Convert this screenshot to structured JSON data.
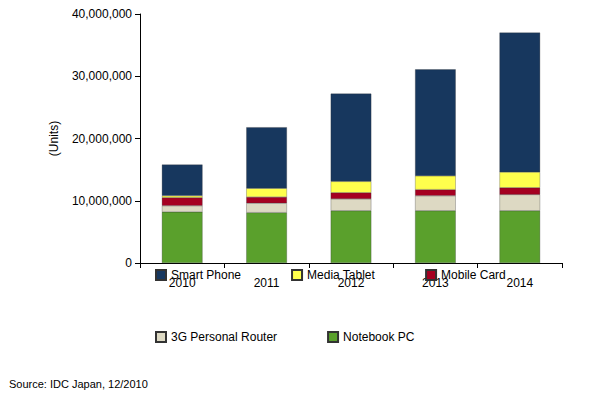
{
  "chart_data": {
    "type": "bar",
    "stacked": true,
    "y_label": "(Units)",
    "annotations": [
      "Source: IDC Japan, 12/2010"
    ],
    "categories": [
      "2010",
      "2011",
      "2012",
      "2013",
      "2014"
    ],
    "series": [
      {
        "name": "Smart Phone",
        "color": "#17375e",
        "values": [
          5000000,
          9800000,
          14100000,
          17100000,
          22400000
        ]
      },
      {
        "name": "Media Tablet",
        "color": "#ffff4d",
        "values": [
          300000,
          1400000,
          1800000,
          2200000,
          2500000
        ]
      },
      {
        "name": "Mobile Card",
        "color": "#a50021",
        "values": [
          1300000,
          1000000,
          1000000,
          1000000,
          1100000
        ]
      },
      {
        "name": "3G Personal Router",
        "color": "#ddd9c3",
        "values": [
          1000000,
          1500000,
          1900000,
          2400000,
          2600000
        ]
      },
      {
        "name": "Notebook PC",
        "color": "#5aa02c",
        "values": [
          8200000,
          8100000,
          8400000,
          8400000,
          8400000
        ]
      }
    ],
    "ylim": [
      0,
      40000000
    ],
    "yticks": [
      0,
      {
        "value": 10000000,
        "label": "10,000,000"
      },
      {
        "value": 20000000,
        "label": "20,000,000"
      },
      {
        "value": 30000000,
        "label": "30,000,000"
      },
      {
        "value": 40000000,
        "label": "40,000,000"
      }
    ],
    "grid": false,
    "legend": "bottom"
  }
}
